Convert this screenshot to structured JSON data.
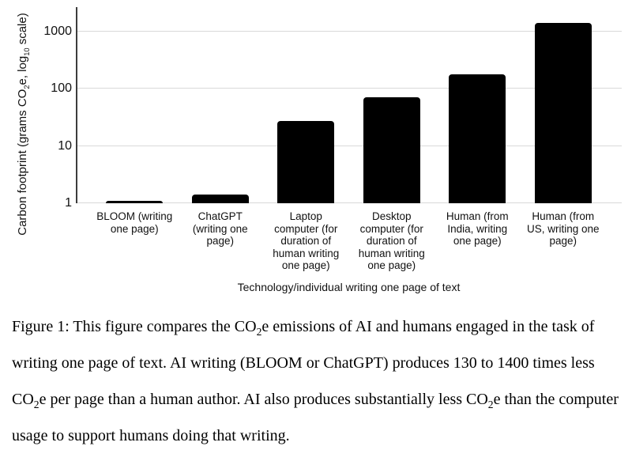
{
  "chart": {
    "y_axis_title_segments": [
      {
        "t": "Carbon footprint (grams CO"
      },
      {
        "t": "2",
        "sub": true
      },
      {
        "t": "e, log"
      },
      {
        "t": "10",
        "sub": true
      },
      {
        "t": " scale)"
      }
    ],
    "x_axis_title": "Technology/individual writing one page of text"
  },
  "chart_data": {
    "type": "bar",
    "title": "",
    "xlabel": "Technology/individual writing one page of text",
    "ylabel": "Carbon footprint (grams CO2e, log10 scale)",
    "y_scale": "log10",
    "ylim": [
      1,
      2500
    ],
    "y_ticks": [
      1,
      10,
      100,
      1000
    ],
    "grid": true,
    "legend_position": "none",
    "bar_color": "#000000",
    "categories": [
      "BLOOM (writing one page)",
      "ChatGPT (writing one page)",
      "Laptop computer (for duration of human writing one page)",
      "Desktop computer (for duration of human writing one page)",
      "Human (from India, writing one page)",
      "Human (from US, writing one page)"
    ],
    "category_label_lines": [
      [
        "BLOOM (writing",
        "one page)"
      ],
      [
        "ChatGPT",
        "(writing one",
        "page)"
      ],
      [
        "Laptop",
        "computer (for",
        "duration of",
        "human writing",
        "one page)"
      ],
      [
        "Desktop",
        "computer (for",
        "duration of",
        "human writing",
        "one page)"
      ],
      [
        "Human (from",
        "India, writing",
        "one page)"
      ],
      [
        "Human (from",
        "US, writing one",
        "page)"
      ]
    ],
    "values": [
      1.1,
      1.4,
      27,
      70,
      180,
      1400
    ]
  },
  "caption": {
    "lines": [
      [
        {
          "t": "Figure 1: This figure compares the CO"
        },
        {
          "t": "2",
          "sub": true
        },
        {
          "t": "e emissions of AI and humans engaged in the task of"
        }
      ],
      [
        {
          "t": "writing one page of text. AI writing (BLOOM or ChatGPT) produces 130 to 1400 times less"
        }
      ],
      [
        {
          "t": "CO"
        },
        {
          "t": "2",
          "sub": true
        },
        {
          "t": "e per page than a human author. AI also produces substantially less CO"
        },
        {
          "t": "2",
          "sub": true
        },
        {
          "t": "e than the computer"
        }
      ],
      [
        {
          "t": "usage to support humans doing that writing."
        }
      ]
    ]
  },
  "colors": {
    "bar": "#000000",
    "gridline": "#d9d9d9",
    "axis": "#3d3d3d",
    "text": "#111111",
    "background": "#ffffff"
  }
}
